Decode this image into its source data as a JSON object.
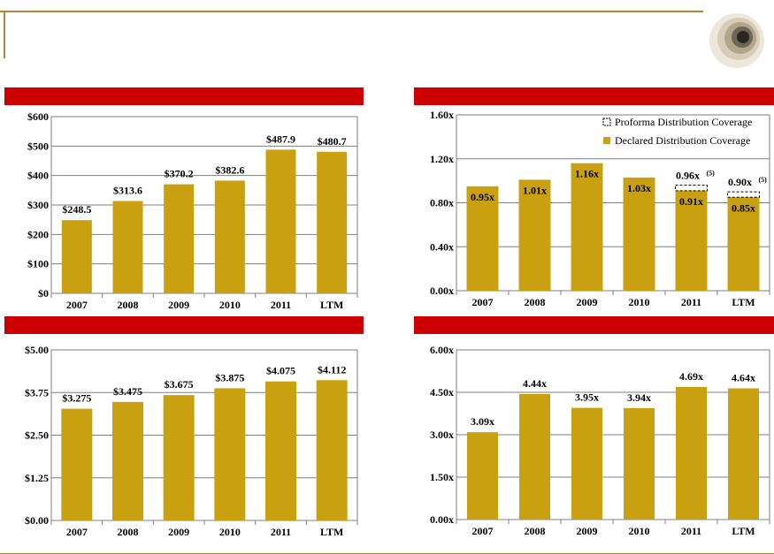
{
  "colors": {
    "bar": "#c9a010",
    "banner": "#cc0000",
    "rule": "#b5862f",
    "grid": "#7f7f7f",
    "proforma_border": "#000000"
  },
  "logo": {
    "icon": "concentric-circles-logo"
  },
  "chart_data": [
    {
      "id": "top-left",
      "type": "bar",
      "title": "",
      "categories": [
        "2007",
        "2008",
        "2009",
        "2010",
        "2011",
        "LTM"
      ],
      "values": [
        248.5,
        313.6,
        370.2,
        382.6,
        487.9,
        480.7
      ],
      "data_labels": [
        "$248.5",
        "$313.6",
        "$370.2",
        "$382.6",
        "$487.9",
        "$480.7"
      ],
      "ylim": [
        0,
        600
      ],
      "yticks": [
        0,
        100,
        200,
        300,
        400,
        500,
        600
      ],
      "ytick_labels": [
        "$0",
        "$100",
        "$200",
        "$300",
        "$400",
        "$500",
        "$600"
      ],
      "grid": true
    },
    {
      "id": "top-right",
      "type": "bar",
      "title": "",
      "categories": [
        "2007",
        "2008",
        "2009",
        "2010",
        "2011",
        "LTM"
      ],
      "values": [
        0.95,
        1.01,
        1.16,
        1.03,
        0.91,
        0.85
      ],
      "data_labels": [
        "0.95x",
        "1.01x",
        "1.16x",
        "1.03x",
        "0.91x",
        "0.85x"
      ],
      "proforma": [
        null,
        null,
        null,
        null,
        0.96,
        0.9
      ],
      "proforma_labels": [
        "",
        "",
        "",
        "",
        "0.96x",
        "0.90x"
      ],
      "proforma_footnote": "(5)",
      "legend": [
        {
          "label": "Proforma Distribution Coverage",
          "style": "dashed-outline"
        },
        {
          "label": "Declared Distribution Coverage",
          "style": "filled"
        }
      ],
      "legend_position": "top-right",
      "ylim": [
        0,
        1.6
      ],
      "yticks": [
        0,
        0.4,
        0.8,
        1.2,
        1.6
      ],
      "ytick_labels": [
        "0.00x",
        "0.40x",
        "0.80x",
        "1.20x",
        "1.60x"
      ],
      "grid": true
    },
    {
      "id": "bottom-left",
      "type": "bar",
      "title": "",
      "categories": [
        "2007",
        "2008",
        "2009",
        "2010",
        "2011",
        "LTM"
      ],
      "values": [
        3.275,
        3.475,
        3.675,
        3.875,
        4.075,
        4.112
      ],
      "data_labels": [
        "$3.275",
        "$3.475",
        "$3.675",
        "$3.875",
        "$4.075",
        "$4.112"
      ],
      "ylim": [
        0,
        5
      ],
      "yticks": [
        0,
        1.25,
        2.5,
        3.75,
        5
      ],
      "ytick_labels": [
        "$0.00",
        "$1.25",
        "$2.50",
        "$3.75",
        "$5.00"
      ],
      "grid": true
    },
    {
      "id": "bottom-right",
      "type": "bar",
      "title": "",
      "categories": [
        "2007",
        "2008",
        "2009",
        "2010",
        "2011",
        "LTM"
      ],
      "values": [
        3.09,
        4.44,
        3.95,
        3.94,
        4.69,
        4.64
      ],
      "data_labels": [
        "3.09x",
        "4.44x",
        "3.95x",
        "3.94x",
        "4.69x",
        "4.64x"
      ],
      "ylim": [
        0,
        6
      ],
      "yticks": [
        0,
        1.5,
        3,
        4.5,
        6
      ],
      "ytick_labels": [
        "0.00x",
        "1.50x",
        "3.00x",
        "4.50x",
        "6.00x"
      ],
      "grid": true
    }
  ]
}
